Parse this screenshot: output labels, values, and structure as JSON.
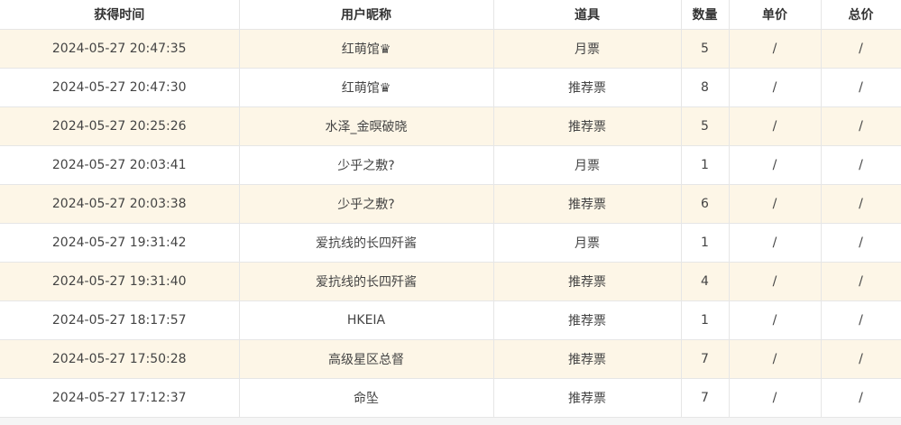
{
  "headers": [
    "获得时间",
    "用户昵称",
    "道具",
    "数量",
    "单价",
    "总价"
  ],
  "rows": [
    [
      "2024-05-27 20:47:35",
      "红萌馆♛",
      "月票",
      "5",
      "/",
      "/"
    ],
    [
      "2024-05-27 20:47:30",
      "红萌馆♛",
      "推荐票",
      "8",
      "/",
      "/"
    ],
    [
      "2024-05-27 20:25:26",
      "水泽_金暝破晓",
      "推荐票",
      "5",
      "/",
      "/"
    ],
    [
      "2024-05-27 20:03:41",
      "少乎之敷?",
      "月票",
      "1",
      "/",
      "/"
    ],
    [
      "2024-05-27 20:03:38",
      "少乎之敷?",
      "推荐票",
      "6",
      "/",
      "/"
    ],
    [
      "2024-05-27 19:31:42",
      "爱抗线的长四歼酱",
      "月票",
      "1",
      "/",
      "/"
    ],
    [
      "2024-05-27 19:31:40",
      "爱抗线的长四歼酱",
      "推荐票",
      "4",
      "/",
      "/"
    ],
    [
      "2024-05-27 18:17:57",
      "HKEIA",
      "推荐票",
      "1",
      "/",
      "/"
    ],
    [
      "2024-05-27 17:50:28",
      "高级星区总督",
      "推荐票",
      "7",
      "/",
      "/"
    ],
    [
      "2024-05-27 17:12:37",
      "命坠",
      "推荐票",
      "7",
      "/",
      "/"
    ]
  ],
  "colors": {
    "stripe": "#fdf6e7",
    "border": "#e6e6e6"
  }
}
